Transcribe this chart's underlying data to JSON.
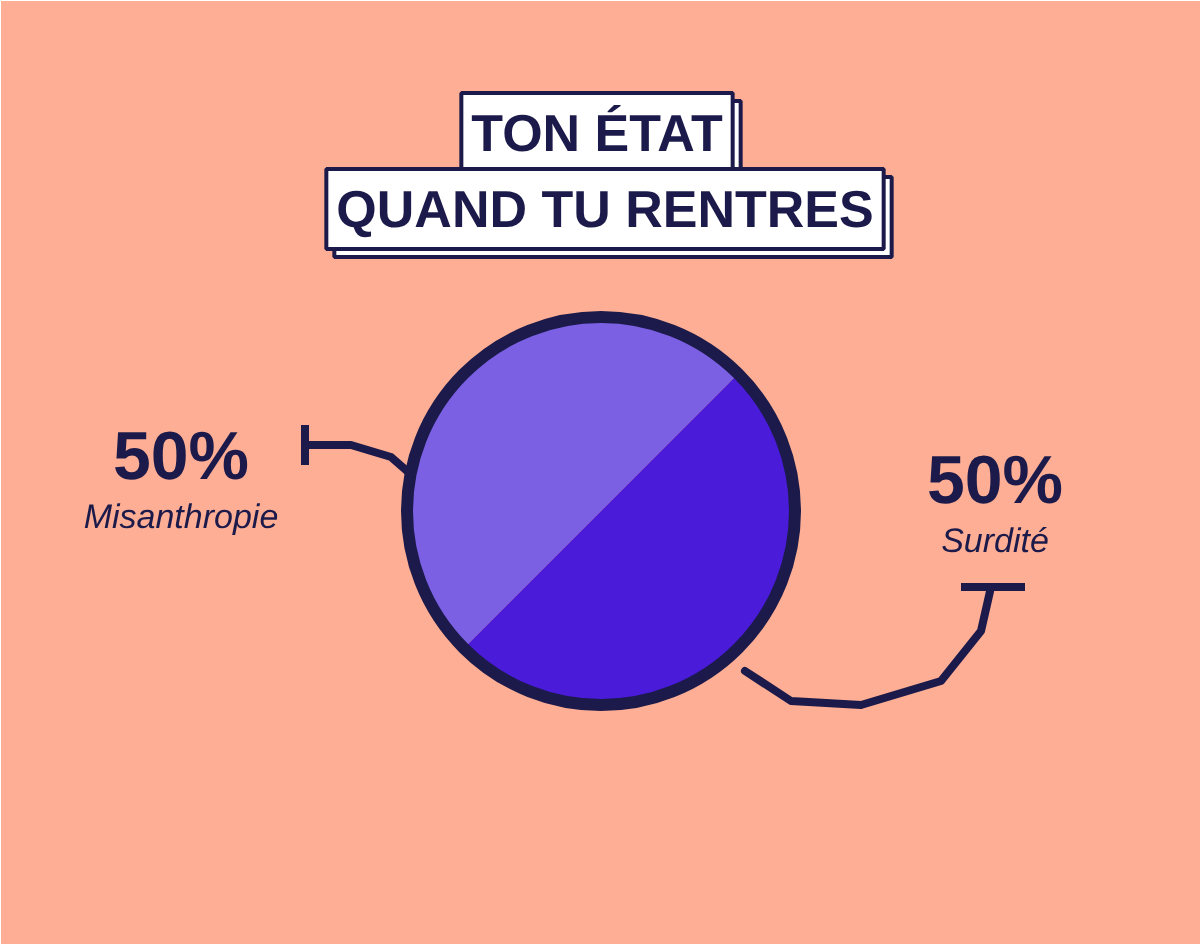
{
  "chart_data": {
    "type": "pie",
    "title": "TON ÉTAT\nQUAND TU RENTRES",
    "categories": [
      "Misanthropie",
      "Surdité"
    ],
    "values": [
      50,
      50
    ],
    "colors": [
      "#7b60e3",
      "#4a1bd8"
    ],
    "value_labels": [
      "50%",
      "50%"
    ]
  }
}
